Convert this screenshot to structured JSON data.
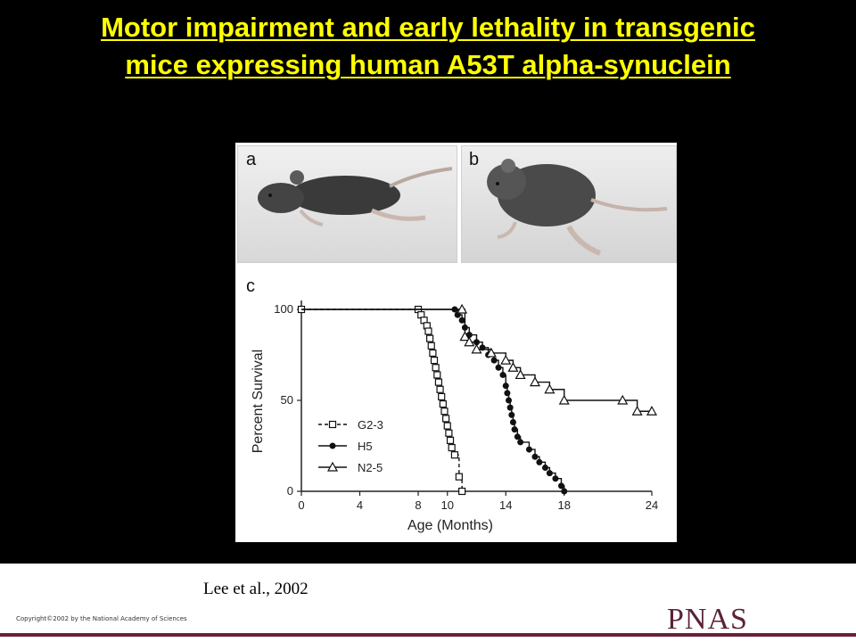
{
  "slide": {
    "title_line1": "Motor impairment and early lethality in transgenic",
    "title_line2": "mice expressing human A53T alpha-synuclein",
    "citation": "Lee et al., 2002",
    "copyright": "Copyright©2002 by the National Academy of Sciences",
    "journal": "PNAS"
  },
  "figure": {
    "panel_a_label": "a",
    "panel_b_label": "b",
    "panel_c_label": "c"
  },
  "chart_data": {
    "type": "line",
    "title": "",
    "xlabel": "Age (Months)",
    "ylabel": "Percent Survival",
    "xlim": [
      0,
      24
    ],
    "ylim": [
      0,
      100
    ],
    "xticks": [
      "0",
      "4",
      "8",
      "10",
      "14",
      "18",
      "24"
    ],
    "yticks": [
      "0",
      "50",
      "100"
    ],
    "legend_position": "lower-left",
    "series": [
      {
        "name": "G2-3",
        "style": "dashed",
        "marker": "square",
        "x": [
          0,
          8.0,
          8.2,
          8.4,
          8.6,
          8.7,
          8.8,
          8.9,
          9.0,
          9.1,
          9.2,
          9.3,
          9.4,
          9.5,
          9.6,
          9.7,
          9.8,
          9.9,
          10.0,
          10.1,
          10.2,
          10.3,
          10.5,
          10.8,
          11.0
        ],
        "y": [
          100,
          100,
          97,
          94,
          91,
          88,
          84,
          80,
          76,
          72,
          68,
          64,
          60,
          56,
          52,
          48,
          44,
          40,
          36,
          32,
          28,
          24,
          20,
          8,
          0
        ]
      },
      {
        "name": "H5",
        "style": "solid",
        "marker": "filled-circle",
        "x": [
          0,
          10.5,
          10.7,
          11.0,
          11.2,
          11.5,
          12.0,
          12.4,
          12.8,
          13.2,
          13.5,
          13.8,
          14.0,
          14.1,
          14.2,
          14.3,
          14.4,
          14.5,
          14.6,
          14.8,
          15.0,
          15.6,
          16.0,
          16.3,
          16.7,
          17.0,
          17.4,
          17.8,
          18.0
        ],
        "y": [
          100,
          100,
          97,
          94,
          90,
          86,
          82,
          79,
          75,
          72,
          68,
          64,
          58,
          54,
          50,
          46,
          42,
          38,
          34,
          30,
          27,
          23,
          19,
          16,
          13,
          10,
          7,
          3,
          0
        ]
      },
      {
        "name": "N2-5",
        "style": "solid",
        "marker": "open-triangle",
        "x": [
          0,
          11.0,
          11.2,
          11.5,
          12.0,
          13.0,
          14.0,
          14.5,
          15.0,
          16.0,
          17.0,
          18.0,
          22.0,
          23.0,
          24.0
        ],
        "y": [
          100,
          100,
          85,
          82,
          78,
          76,
          72,
          68,
          64,
          60,
          56,
          50,
          50,
          44,
          44
        ]
      }
    ]
  }
}
